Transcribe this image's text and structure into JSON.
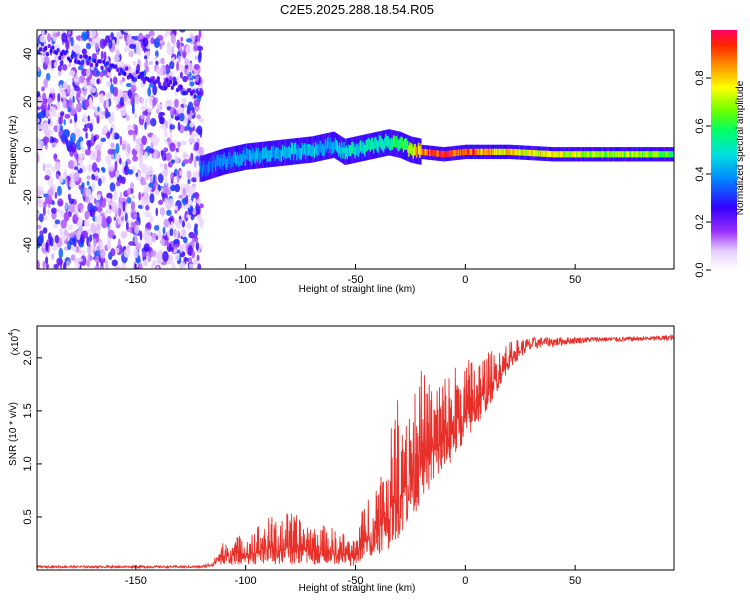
{
  "figure": {
    "title": "C2E5.2025.288.18.54.R05"
  },
  "chart_data": [
    {
      "id": "spectrogram",
      "type": "heatmap",
      "xlabel": "Height of straight line (km)",
      "ylabel": "Frequency (Hz)",
      "xlim": [
        -195,
        95
      ],
      "ylim": [
        -50,
        50
      ],
      "xticks": [
        -150,
        -100,
        -50,
        0,
        50
      ],
      "yticks": [
        -40,
        -20,
        0,
        20,
        40
      ],
      "ridge": {
        "x": [
          -120,
          -110,
          -100,
          -90,
          -80,
          -70,
          -60,
          -55,
          -50,
          -40,
          -35,
          -30,
          -25,
          -20,
          -10,
          0,
          10,
          20,
          40,
          60,
          80,
          95
        ],
        "freq": [
          -8,
          -5,
          -3,
          -2,
          -1,
          0,
          2,
          -1,
          0,
          2,
          3,
          2,
          0,
          -1,
          -2,
          -1,
          -1,
          -1,
          -2,
          -2,
          -2,
          -2
        ],
        "amplitude": [
          0.35,
          0.4,
          0.4,
          0.42,
          0.45,
          0.45,
          0.42,
          0.5,
          0.5,
          0.55,
          0.55,
          0.6,
          0.7,
          0.9,
          0.95,
          0.92,
          0.85,
          0.8,
          0.75,
          0.7,
          0.7,
          0.6
        ]
      },
      "noise_region_x": [
        -195,
        -120
      ],
      "colorbar": {
        "label": "Normalized spectral amplitude",
        "range": [
          0.0,
          1.0
        ],
        "ticks": [
          0.0,
          0.2,
          0.4,
          0.6,
          0.8
        ]
      }
    },
    {
      "id": "snr",
      "type": "line",
      "xlabel": "Height of straight line (km)",
      "ylabel": "SNR (10 * v/v)",
      "scale_label": "(x10",
      "scale_exp": "4",
      "scale_close": ")",
      "xlim": [
        -195,
        95
      ],
      "ylim": [
        0,
        2.3
      ],
      "xticks": [
        -150,
        -100,
        -50,
        0,
        50
      ],
      "yticks": [
        0.5,
        1.0,
        1.5,
        2.0
      ],
      "color": "#e8302a",
      "envelope": {
        "x": [
          -195,
          -120,
          -115,
          -110,
          -100,
          -90,
          -80,
          -70,
          -60,
          -55,
          -52,
          -50,
          -45,
          -40,
          -35,
          -30,
          -25,
          -20,
          -15,
          -10,
          -5,
          0,
          5,
          10,
          15,
          20,
          25,
          30,
          35,
          40,
          50,
          60,
          70,
          80,
          95
        ],
        "low": [
          0.02,
          0.02,
          0.03,
          0.05,
          0.05,
          0.05,
          0.05,
          0.05,
          0.05,
          0.05,
          0.02,
          0.05,
          0.1,
          0.15,
          0.2,
          0.3,
          0.45,
          0.65,
          0.8,
          0.9,
          1.05,
          1.2,
          1.35,
          1.5,
          1.7,
          1.9,
          2.0,
          2.05,
          2.1,
          2.1,
          2.13,
          2.15,
          2.15,
          2.16,
          2.16
        ],
        "high": [
          0.04,
          0.04,
          0.08,
          0.28,
          0.35,
          0.5,
          0.55,
          0.45,
          0.4,
          0.35,
          0.3,
          0.35,
          0.7,
          0.9,
          1.2,
          1.75,
          1.7,
          1.9,
          1.8,
          1.85,
          1.95,
          2.0,
          2.0,
          2.05,
          2.1,
          2.15,
          2.18,
          2.2,
          2.2,
          2.2,
          2.2,
          2.2,
          2.2,
          2.2,
          2.22
        ]
      }
    }
  ]
}
